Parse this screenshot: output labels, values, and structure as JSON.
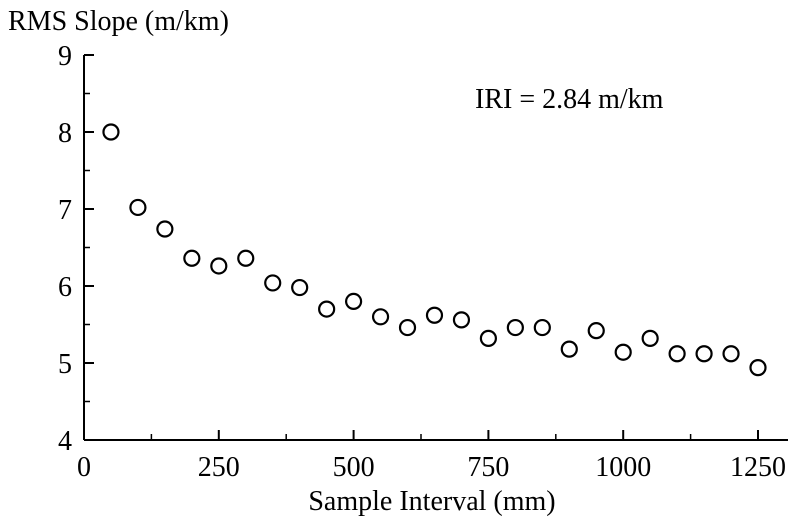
{
  "chart_data": {
    "type": "scatter",
    "ylabel": "RMS Slope (m/km)",
    "xlabel": "Sample Interval (mm)",
    "annotation": "IRI = 2.84 m/km",
    "xlim": [
      0,
      1300
    ],
    "ylim": [
      4,
      9
    ],
    "x_ticks": [
      0,
      250,
      500,
      750,
      1000,
      1250
    ],
    "x_tick_labels": [
      "0",
      "250",
      "500",
      "750",
      "1000",
      "1250"
    ],
    "y_ticks": [
      4,
      5,
      6,
      7,
      8,
      9
    ],
    "y_tick_labels": [
      "4",
      "5",
      "6",
      "7",
      "8",
      "9"
    ],
    "grid": false,
    "marker": "open-circle",
    "x": [
      50,
      100,
      150,
      200,
      250,
      300,
      350,
      400,
      450,
      500,
      550,
      600,
      650,
      700,
      750,
      800,
      850,
      900,
      950,
      1000,
      1050,
      1100,
      1150,
      1200,
      1250
    ],
    "y": [
      8.0,
      7.02,
      6.74,
      6.36,
      6.26,
      6.36,
      6.04,
      5.98,
      5.7,
      5.8,
      5.6,
      5.46,
      5.62,
      5.56,
      5.32,
      5.46,
      5.46,
      5.18,
      5.42,
      5.14,
      5.32,
      5.12,
      5.12,
      5.12,
      4.94
    ]
  }
}
